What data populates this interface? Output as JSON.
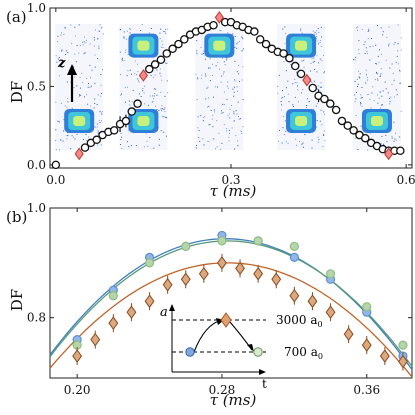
{
  "chart_data": [
    {
      "panel": "(a)",
      "type": "scatter",
      "xlabel": "τ (ms)",
      "ylabel": "DF",
      "xlim": [
        -0.01,
        0.61
      ],
      "ylim": [
        -0.02,
        1.0
      ],
      "xticks": [
        0.0,
        0.3,
        0.6
      ],
      "xtick_labels": [
        "0.0",
        "0.3",
        "0.6"
      ],
      "yticks": [
        0.0,
        0.5,
        1.0
      ],
      "ytick_labels": [
        "0.0",
        "0.5",
        "1.0"
      ],
      "axis_arrow_label": "z",
      "series": [
        {
          "marker": "circle",
          "x": [
            0.0,
            0.05,
            0.06,
            0.07,
            0.08,
            0.09,
            0.1,
            0.11,
            0.12,
            0.13,
            0.14,
            0.16,
            0.17,
            0.18,
            0.19,
            0.2,
            0.21,
            0.22,
            0.23,
            0.24,
            0.25,
            0.26,
            0.27,
            0.29,
            0.3,
            0.31,
            0.32,
            0.33,
            0.34,
            0.35,
            0.36,
            0.37,
            0.38,
            0.39,
            0.4,
            0.41,
            0.42,
            0.44,
            0.45,
            0.46,
            0.47,
            0.48,
            0.49,
            0.5,
            0.51,
            0.52,
            0.53,
            0.54,
            0.55,
            0.56,
            0.57,
            0.58,
            0.59
          ],
          "y": [
            0.0,
            0.11,
            0.14,
            0.16,
            0.19,
            0.21,
            0.22,
            0.26,
            0.28,
            0.34,
            0.39,
            0.61,
            0.64,
            0.67,
            0.71,
            0.74,
            0.77,
            0.8,
            0.83,
            0.85,
            0.86,
            0.88,
            0.89,
            0.91,
            0.91,
            0.89,
            0.88,
            0.86,
            0.85,
            0.8,
            0.77,
            0.74,
            0.72,
            0.71,
            0.68,
            0.63,
            0.58,
            0.49,
            0.44,
            0.42,
            0.39,
            0.35,
            0.28,
            0.25,
            0.22,
            0.19,
            0.17,
            0.14,
            0.12,
            0.1,
            0.09,
            0.09,
            0.09
          ],
          "yerr": [
            0,
            0,
            0,
            0,
            0,
            0,
            0,
            0.05,
            0.04,
            0,
            0,
            0,
            0,
            0,
            0,
            0,
            0,
            0,
            0,
            0,
            0,
            0,
            0,
            0,
            0,
            0,
            0,
            0,
            0,
            0,
            0,
            0,
            0,
            0,
            0,
            0,
            0,
            0,
            0.04,
            0,
            0,
            0,
            0,
            0,
            0,
            0,
            0,
            0,
            0,
            0,
            0,
            0,
            0
          ],
          "color": "#111111"
        },
        {
          "marker": "diamond",
          "x": [
            0.04,
            0.15,
            0.28,
            0.43,
            0.57
          ],
          "y": [
            0.07,
            0.57,
            0.94,
            0.54,
            0.07
          ],
          "color": "#c0392b"
        }
      ],
      "inset_images": [
        {
          "x_center": 0.04,
          "cloud_y": [
            0.28
          ]
        },
        {
          "x_center": 0.15,
          "cloud_y": [
            0.28,
            0.76
          ]
        },
        {
          "x_center": 0.28,
          "cloud_y": [
            0.76
          ]
        },
        {
          "x_center": 0.42,
          "cloud_y": [
            0.28,
            0.76
          ]
        },
        {
          "x_center": 0.55,
          "cloud_y": [
            0.28
          ]
        }
      ]
    },
    {
      "panel": "(b)",
      "type": "scatter",
      "xlabel": "τ (ms)",
      "ylabel": "DF",
      "xlim": [
        0.185,
        0.385
      ],
      "ylim": [
        0.69,
        1.0
      ],
      "xticks": [
        0.2,
        0.28,
        0.36
      ],
      "xtick_labels": [
        "0.20",
        "0.28",
        "0.36"
      ],
      "yticks": [
        0.8,
        1.0
      ],
      "ytick_labels": [
        "0.8",
        "1.0"
      ],
      "series": [
        {
          "marker": "circle",
          "color": "#5b8fd6",
          "x": [
            0.2,
            0.22,
            0.24,
            0.26,
            0.28,
            0.3,
            0.32,
            0.34,
            0.36,
            0.38
          ],
          "y": [
            0.76,
            0.85,
            0.91,
            0.93,
            0.95,
            0.94,
            0.91,
            0.87,
            0.81,
            0.73
          ],
          "fit": {
            "a": 0.944,
            "x0": 0.282,
            "b": 22.5,
            "color": "#3f7fbf"
          }
        },
        {
          "marker": "circle",
          "color": "#8fbf7f",
          "x": [
            0.2,
            0.22,
            0.24,
            0.26,
            0.28,
            0.3,
            0.32,
            0.34,
            0.36,
            0.38
          ],
          "y": [
            0.75,
            0.84,
            0.9,
            0.93,
            0.94,
            0.94,
            0.93,
            0.88,
            0.82,
            0.75
          ],
          "fit": {
            "a": 0.94,
            "x0": 0.283,
            "b": 22.0,
            "color": "#5a9a7a"
          }
        },
        {
          "marker": "diamond",
          "color": "#c87a3c",
          "x": [
            0.2,
            0.21,
            0.22,
            0.23,
            0.24,
            0.25,
            0.26,
            0.27,
            0.28,
            0.29,
            0.3,
            0.31,
            0.32,
            0.33,
            0.34,
            0.35,
            0.36,
            0.37,
            0.38
          ],
          "y": [
            0.73,
            0.76,
            0.79,
            0.81,
            0.83,
            0.86,
            0.87,
            0.88,
            0.9,
            0.89,
            0.88,
            0.87,
            0.84,
            0.83,
            0.81,
            0.77,
            0.75,
            0.73,
            0.72
          ],
          "fit": {
            "a": 0.9,
            "x0": 0.283,
            "b": 20.0,
            "color": "#c0652a"
          }
        }
      ],
      "inset": {
        "ylabel": "a",
        "xlabel": "t",
        "upper_label": "3000 a",
        "lower_label": "700 a",
        "subscript": "0"
      }
    }
  ]
}
